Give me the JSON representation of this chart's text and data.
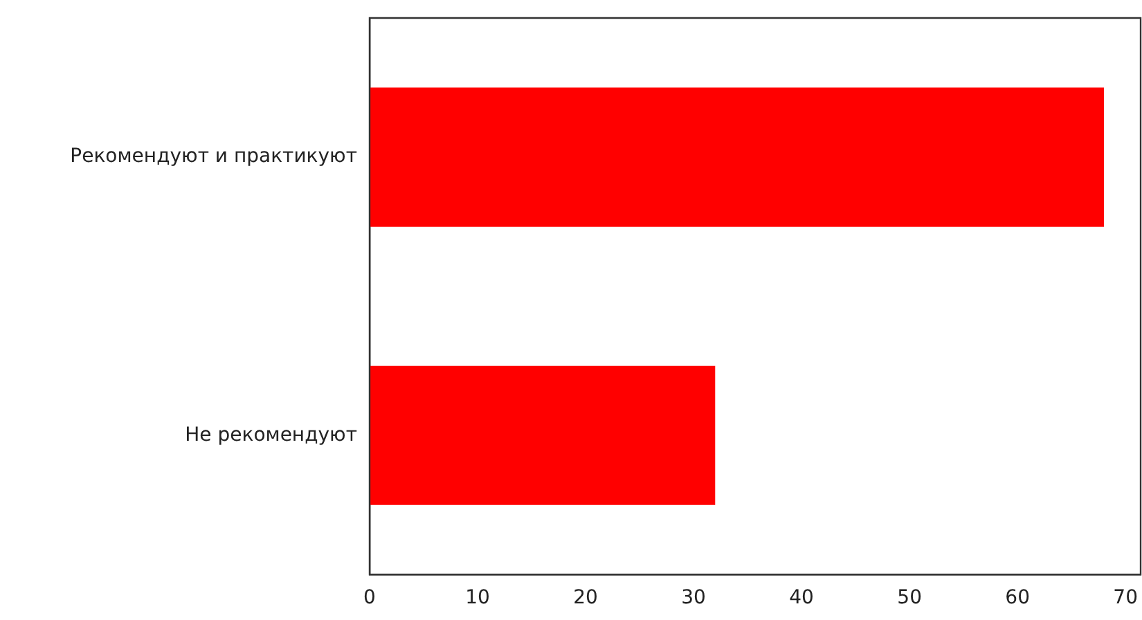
{
  "chart_data": {
    "type": "bar",
    "orientation": "horizontal",
    "categories": [
      "Рекомендуют и практикуют",
      "Не рекомендуют"
    ],
    "values": [
      68,
      32
    ],
    "color": "#ff0000",
    "xlim": [
      0,
      71.4
    ],
    "xticks": [
      0,
      10,
      20,
      30,
      40,
      50,
      60,
      70
    ],
    "grid": false,
    "legend": false
  }
}
